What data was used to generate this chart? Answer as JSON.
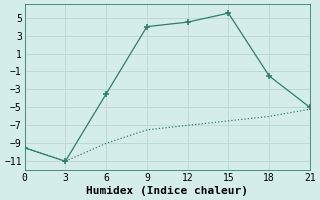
{
  "xlabel": "Humidex (Indice chaleur)",
  "line1_x": [
    0,
    3,
    6,
    9,
    12,
    15,
    18,
    21
  ],
  "line1_y": [
    -9.5,
    -11,
    -3.5,
    4,
    4.5,
    5.5,
    -1.5,
    -5
  ],
  "line2_x": [
    0,
    3,
    6,
    9,
    12,
    15,
    18,
    21
  ],
  "line2_y": [
    -9.5,
    -11,
    -9.0,
    -7.5,
    -7.0,
    -6.5,
    -6.0,
    -5.2
  ],
  "line_color": "#2e7d6e",
  "bg_color": "#d5edea",
  "grid_color": "#c0d8d4",
  "xlim": [
    0,
    21
  ],
  "ylim": [
    -12,
    6.5
  ],
  "xticks": [
    0,
    3,
    6,
    9,
    12,
    15,
    18,
    21
  ],
  "yticks": [
    -11,
    -9,
    -7,
    -5,
    -3,
    -1,
    1,
    3,
    5
  ],
  "font_family": "monospace",
  "xlabel_fontsize": 8,
  "tick_fontsize": 7
}
